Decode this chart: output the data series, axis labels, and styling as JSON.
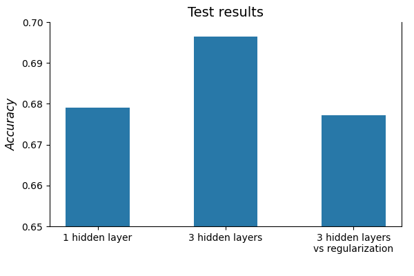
{
  "categories": [
    "1 hidden layer",
    "3 hidden layers",
    "3 hidden layers\nvs regularization"
  ],
  "values": [
    0.679,
    0.6965,
    0.6772
  ],
  "bar_color": "#2878a8",
  "title": "Test results",
  "ylabel": "Accuracy",
  "ylim": [
    0.65,
    0.7
  ],
  "yticks": [
    0.65,
    0.66,
    0.67,
    0.68,
    0.69,
    0.7
  ],
  "title_fontsize": 14,
  "ylabel_fontsize": 12,
  "tick_fontsize": 10,
  "bar_width": 0.5
}
